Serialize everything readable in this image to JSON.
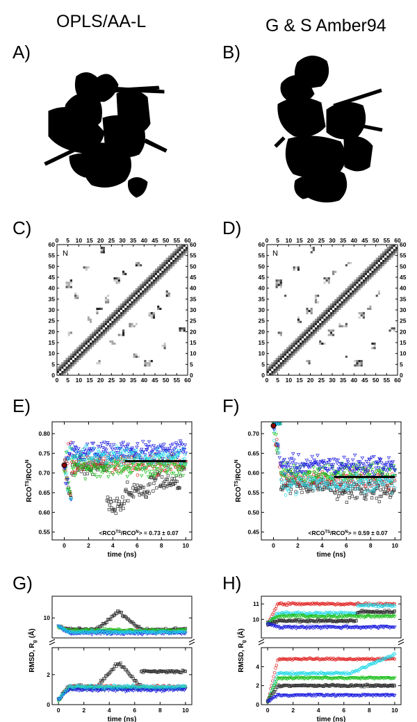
{
  "column_titles": {
    "left": "OPLS/AA-L",
    "right": "G & S Amber94"
  },
  "panel_labels": {
    "A": "A)",
    "B": "B)",
    "C": "C)",
    "D": "D)",
    "E": "E)",
    "F": "F)",
    "G": "G)",
    "H": "H)"
  },
  "colors": {
    "black": "#303030",
    "red": "#e02020",
    "green": "#20c020",
    "blue": "#2020e0",
    "cyan": "#20d8e8",
    "marker_fill": "#8b0000",
    "mean_line": "#000000"
  },
  "contact_maps": {
    "ticks": [
      "0",
      "5",
      "10",
      "15",
      "20",
      "25",
      "30",
      "35",
      "40",
      "45",
      "50",
      "55",
      "60"
    ],
    "corner_label": "N",
    "range": [
      0,
      60
    ]
  },
  "chart_data": [
    {
      "panel": "E",
      "type": "scatter",
      "xlabel": "time (ns)",
      "ylabel": "RCO^TS/RCO^N",
      "ylabel_main": "RCO",
      "ylabel_sup1": "TS",
      "ylabel_mid": "/RCO",
      "ylabel_sup2": "N",
      "xlim": [
        -1,
        10.5
      ],
      "ylim": [
        0.53,
        0.83
      ],
      "xticks": [
        0,
        2,
        4,
        6,
        8,
        10
      ],
      "yticks": [
        0.55,
        0.6,
        0.65,
        0.7,
        0.75,
        0.8
      ],
      "start_marker": {
        "x": 0,
        "y": 0.72
      },
      "mean_line": {
        "x": [
          5,
          10
        ],
        "y": 0.73
      },
      "annotation": "<RCO^TS/RCO^N> = 0.73 ± 0.07",
      "annotation_main": "<RCO",
      "annotation_sup1": "TS",
      "annotation_mid": "/RCO",
      "annotation_sup2": "N",
      "annotation_tail": "> = 0.73 ± 0.07",
      "series": [
        {
          "color": "black",
          "plateau": 0.72,
          "segments": [
            [
              3.5,
              5.0,
              0.62
            ],
            [
              5.0,
              7.0,
              0.65
            ],
            [
              7.0,
              9.6,
              0.68
            ]
          ]
        },
        {
          "color": "red",
          "plateau": 0.725,
          "segments": []
        },
        {
          "color": "green",
          "plateau": 0.715,
          "segments": []
        },
        {
          "color": "blue",
          "plateau": 0.755,
          "segments": []
        },
        {
          "color": "cyan",
          "plateau": 0.74,
          "segments": []
        }
      ]
    },
    {
      "panel": "F",
      "type": "scatter",
      "xlabel": "time (ns)",
      "ylabel": "RCO^TS/RCO^N",
      "ylabel_main": "RCO",
      "ylabel_sup1": "TS",
      "ylabel_mid": "/RCO",
      "ylabel_sup2": "N",
      "xlim": [
        -1,
        10.5
      ],
      "ylim": [
        0.43,
        0.73
      ],
      "xticks": [
        0,
        2,
        4,
        6,
        8,
        10
      ],
      "yticks": [
        0.45,
        0.5,
        0.55,
        0.6,
        0.65,
        0.7
      ],
      "start_marker": {
        "x": 0,
        "y": 0.72
      },
      "mean_line": {
        "x": [
          5,
          10
        ],
        "y": 0.59
      },
      "annotation": "<RCO^TS/RCO^N> = 0.59 ± 0.07",
      "annotation_main": "<RCO",
      "annotation_sup1": "TS",
      "annotation_mid": "/RCO",
      "annotation_sup2": "N",
      "annotation_tail": "> = 0.59 ± 0.07",
      "series": [
        {
          "color": "black",
          "plateau": 0.57,
          "segments": [
            [
              5.0,
              10.0,
              0.555
            ]
          ]
        },
        {
          "color": "red",
          "plateau": 0.585,
          "segments": []
        },
        {
          "color": "green",
          "plateau": 0.6,
          "segments": []
        },
        {
          "color": "blue",
          "plateau": 0.62,
          "segments": []
        },
        {
          "color": "cyan",
          "plateau": 0.575,
          "segments": []
        }
      ]
    },
    {
      "panel": "G",
      "type": "scatter",
      "xlabel": "time (ns)",
      "ylabel": "RMSD, R_g (Å)",
      "ylabel_main": "RMSD, R",
      "ylabel_sub": "g",
      "ylabel_unit": " (Å)",
      "xlim": [
        -0.5,
        10.5
      ],
      "broken_axis": true,
      "upper": {
        "ylim": [
          8.8,
          11.3
        ],
        "yticks": [
          10
        ]
      },
      "lower": {
        "ylim": [
          0,
          3.8
        ],
        "yticks": [
          0,
          2
        ]
      },
      "xticks": [
        0,
        2,
        4,
        6,
        8,
        10
      ],
      "rg_series": [
        {
          "color": "black",
          "start": 9.5,
          "plateau": 9.3,
          "bump": {
            "x": [
              3.0,
              6.5
            ],
            "peak": 10.4
          }
        },
        {
          "color": "red",
          "start": 9.5,
          "plateau": 9.2
        },
        {
          "color": "green",
          "start": 9.5,
          "plateau": 9.25
        },
        {
          "color": "blue",
          "start": 9.5,
          "plateau": 9.1
        },
        {
          "color": "cyan",
          "start": 9.5,
          "plateau": 9.15
        }
      ],
      "rmsd_series": [
        {
          "color": "black",
          "start": 0.3,
          "plateau": 1.2,
          "bump": {
            "x": [
              3.0,
              6.5
            ],
            "peak": 2.8
          },
          "end": 2.2
        },
        {
          "color": "red",
          "start": 0.3,
          "plateau": 1.2
        },
        {
          "color": "green",
          "start": 0.3,
          "plateau": 1.1
        },
        {
          "color": "blue",
          "start": 0.3,
          "plateau": 1.0
        },
        {
          "color": "cyan",
          "start": 0.3,
          "plateau": 1.2
        }
      ]
    },
    {
      "panel": "H",
      "type": "scatter",
      "xlabel": "time (ns)",
      "ylabel": "RMSD, R_g (Å)",
      "ylabel_main": "RMSD, R",
      "ylabel_sub": "g",
      "ylabel_unit": " (Å)",
      "xlim": [
        -0.5,
        10.5
      ],
      "broken_axis": true,
      "upper": {
        "ylim": [
          8.8,
          11.5
        ],
        "yticks": [
          10,
          11
        ]
      },
      "lower": {
        "ylim": [
          0,
          6
        ],
        "yticks": [
          0,
          2,
          4
        ]
      },
      "xticks": [
        0,
        2,
        4,
        6,
        8,
        10
      ],
      "rg_series": [
        {
          "color": "red",
          "start": 9.7,
          "plateau": 11.0
        },
        {
          "color": "cyan",
          "start": 9.7,
          "plateau": 10.4,
          "late": {
            "x": 7.0,
            "value": 10.9
          }
        },
        {
          "color": "green",
          "start": 9.7,
          "plateau": 10.2
        },
        {
          "color": "black",
          "start": 9.7,
          "plateau": 9.9,
          "late": {
            "x": 7.0,
            "value": 10.5
          }
        },
        {
          "color": "blue",
          "start": 9.7,
          "plateau": 9.5
        }
      ],
      "rmsd_series": [
        {
          "color": "red",
          "start": 0.3,
          "plateau": 4.8
        },
        {
          "color": "cyan",
          "start": 0.3,
          "plateau": 3.3,
          "end": 5.3
        },
        {
          "color": "green",
          "start": 0.3,
          "plateau": 2.8
        },
        {
          "color": "black",
          "start": 0.3,
          "plateau": 2.0
        },
        {
          "color": "blue",
          "start": 0.3,
          "plateau": 1.0
        }
      ]
    }
  ]
}
